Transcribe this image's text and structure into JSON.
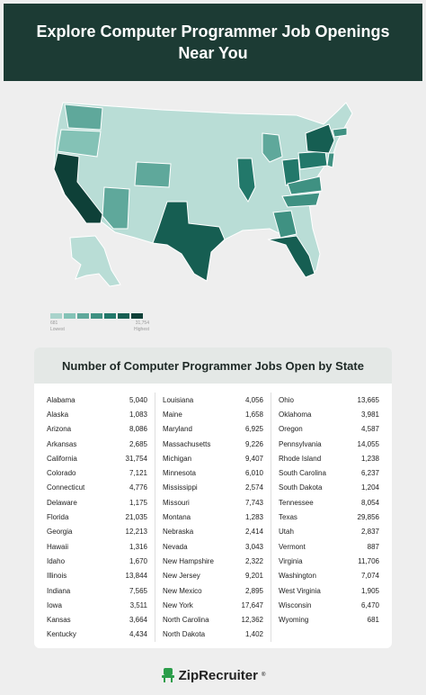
{
  "header": {
    "title": "Explore Computer Programmer Job Openings Near You"
  },
  "legend": {
    "min": "681",
    "max": "31,754",
    "low_label": "Lowest",
    "high_label": "Highest",
    "colors": [
      "#a9d3cb",
      "#84c2b6",
      "#5fa89b",
      "#3f9182",
      "#22786a",
      "#165e52",
      "#0e4038"
    ]
  },
  "table": {
    "title": "Number of Computer Programmer Jobs Open by State",
    "columns": [
      [
        {
          "state": "Alabama",
          "value": "5,040"
        },
        {
          "state": "Alaska",
          "value": "1,083"
        },
        {
          "state": "Arizona",
          "value": "8,086"
        },
        {
          "state": "Arkansas",
          "value": "2,685"
        },
        {
          "state": "California",
          "value": "31,754"
        },
        {
          "state": "Colorado",
          "value": "7,121"
        },
        {
          "state": "Connecticut",
          "value": "4,776"
        },
        {
          "state": "Delaware",
          "value": "1,175"
        },
        {
          "state": "Florida",
          "value": "21,035"
        },
        {
          "state": "Georgia",
          "value": "12,213"
        },
        {
          "state": "Hawaii",
          "value": "1,316"
        },
        {
          "state": "Idaho",
          "value": "1,670"
        },
        {
          "state": "Illinois",
          "value": "13,844"
        },
        {
          "state": "Indiana",
          "value": "7,565"
        },
        {
          "state": "Iowa",
          "value": "3,511"
        },
        {
          "state": "Kansas",
          "value": "3,664"
        },
        {
          "state": "Kentucky",
          "value": "4,434"
        }
      ],
      [
        {
          "state": "Louisiana",
          "value": "4,056"
        },
        {
          "state": "Maine",
          "value": "1,658"
        },
        {
          "state": "Maryland",
          "value": "6,925"
        },
        {
          "state": "Massachusetts",
          "value": "9,226"
        },
        {
          "state": "Michigan",
          "value": "9,407"
        },
        {
          "state": "Minnesota",
          "value": "6,010"
        },
        {
          "state": "Mississippi",
          "value": "2,574"
        },
        {
          "state": "Missouri",
          "value": "7,743"
        },
        {
          "state": "Montana",
          "value": "1,283"
        },
        {
          "state": "Nebraska",
          "value": "2,414"
        },
        {
          "state": "Nevada",
          "value": "3,043"
        },
        {
          "state": "New Hampshire",
          "value": "2,322"
        },
        {
          "state": "New Jersey",
          "value": "9,201"
        },
        {
          "state": "New Mexico",
          "value": "2,895"
        },
        {
          "state": "New York",
          "value": "17,647"
        },
        {
          "state": "North Carolina",
          "value": "12,362"
        },
        {
          "state": "North Dakota",
          "value": "1,402"
        }
      ],
      [
        {
          "state": "Ohio",
          "value": "13,665"
        },
        {
          "state": "Oklahoma",
          "value": "3,981"
        },
        {
          "state": "Oregon",
          "value": "4,587"
        },
        {
          "state": "Pennsylvania",
          "value": "14,055"
        },
        {
          "state": "Rhode Island",
          "value": "1,238"
        },
        {
          "state": "South Carolina",
          "value": "6,237"
        },
        {
          "state": "South Dakota",
          "value": "1,204"
        },
        {
          "state": "Tennessee",
          "value": "8,054"
        },
        {
          "state": "Texas",
          "value": "29,856"
        },
        {
          "state": "Utah",
          "value": "2,837"
        },
        {
          "state": "Vermont",
          "value": "887"
        },
        {
          "state": "Virginia",
          "value": "11,706"
        },
        {
          "state": "Washington",
          "value": "7,074"
        },
        {
          "state": "West Virginia",
          "value": "1,905"
        },
        {
          "state": "Wisconsin",
          "value": "6,470"
        },
        {
          "state": "Wyoming",
          "value": "681"
        }
      ]
    ]
  },
  "footer": {
    "brand": "ZipRecruiter",
    "icon": "zip-chair-icon",
    "brand_color": "#2b9d4a"
  }
}
